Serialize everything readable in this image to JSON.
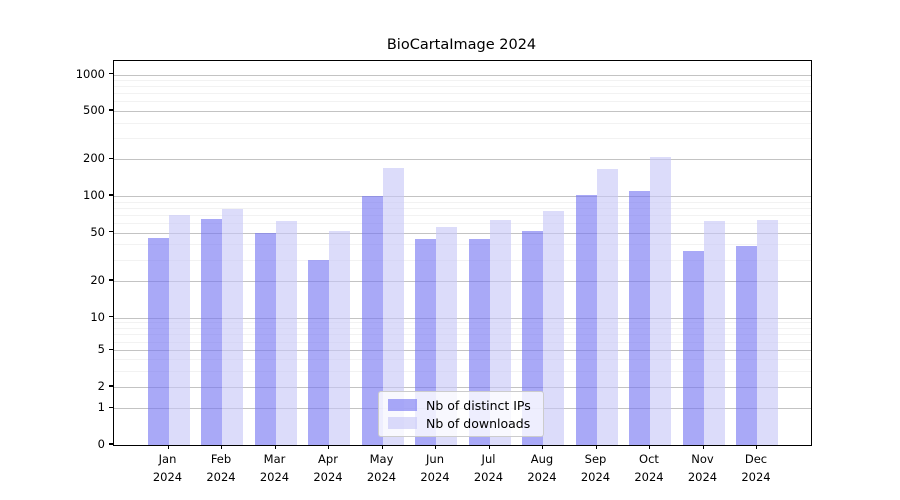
{
  "title": "BioCartaImage 2024",
  "chart_data": {
    "type": "bar",
    "title": "BioCartaImage 2024",
    "categories": [
      "Jan 2024",
      "Feb 2024",
      "Mar 2024",
      "Apr 2024",
      "May 2024",
      "Jun 2024",
      "Jul 2024",
      "Aug 2024",
      "Sep 2024",
      "Oct 2024",
      "Nov 2024",
      "Dec 2024"
    ],
    "series": [
      {
        "name": "Nb of distinct IPs",
        "color": "#a8a8f6",
        "fill_rgba": "rgba(116,116,242,0.62)",
        "values": [
          45,
          65,
          50,
          30,
          100,
          44,
          44,
          52,
          102,
          110,
          35,
          39
        ]
      },
      {
        "name": "Nb of downloads",
        "color": "#dbdbfa",
        "fill_rgba": "rgba(199,199,247,0.62)",
        "values": [
          70,
          78,
          62,
          52,
          170,
          56,
          64,
          75,
          168,
          208,
          62,
          64
        ]
      }
    ],
    "yscale": "symlog",
    "ylim": [
      0,
      1300
    ],
    "yticks": [
      0,
      1,
      2,
      5,
      10,
      20,
      50,
      100,
      200,
      500,
      1000
    ],
    "minor_gridlines": [
      3,
      4,
      6,
      7,
      8,
      9,
      30,
      40,
      60,
      70,
      80,
      90,
      300,
      400,
      600,
      700,
      800,
      900
    ],
    "xlabel": "",
    "ylabel": "",
    "grid": true,
    "legend_position": "lower center"
  },
  "legend": {
    "items": [
      {
        "label": "Nb of distinct IPs"
      },
      {
        "label": "Nb of downloads"
      }
    ]
  },
  "colors": {
    "grid_major": "#c3c3c3",
    "grid_minor": "#f2f2f2",
    "spine": "#000000",
    "background": "#ffffff"
  }
}
